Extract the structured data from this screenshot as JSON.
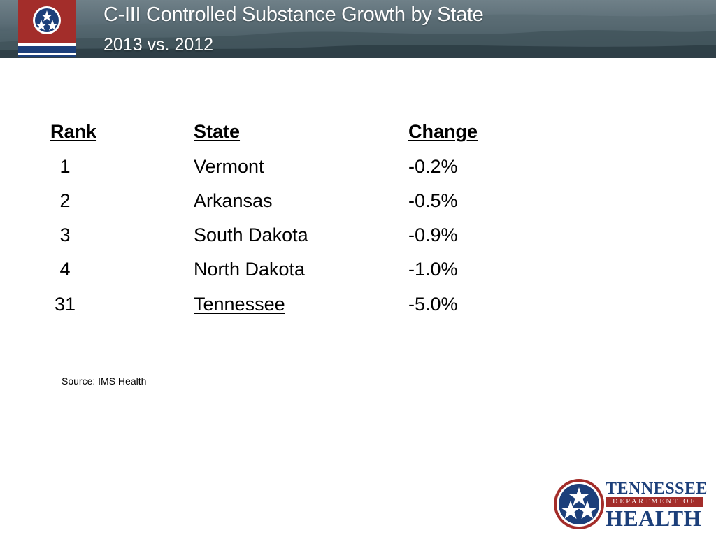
{
  "header": {
    "title": "C-III Controlled Substance Growth by State",
    "subtitle": "2013 vs. 2012"
  },
  "table": {
    "columns": [
      "Rank",
      "State",
      "Change"
    ],
    "rows": [
      {
        "rank": "1",
        "state": "Vermont",
        "change": "-0.2%"
      },
      {
        "rank": "2",
        "state": "Arkansas",
        "change": "-0.5%"
      },
      {
        "rank": "3",
        "state": "South Dakota",
        "change": "-0.9%"
      },
      {
        "rank": "4",
        "state": "North Dakota",
        "change": "-1.0%"
      },
      {
        "rank": "31",
        "state": "Tennessee",
        "change": "-5.0%"
      }
    ]
  },
  "source": "Source: IMS Health",
  "logo": {
    "line1": "TENNESSEE",
    "line2": "DEPARTMENT OF",
    "line3": "HEALTH",
    "colors": {
      "blue": "#1c3f7a",
      "red": "#a32d2a"
    }
  },
  "icons": [
    "tennessee-flag-icon",
    "tristar-icon"
  ]
}
